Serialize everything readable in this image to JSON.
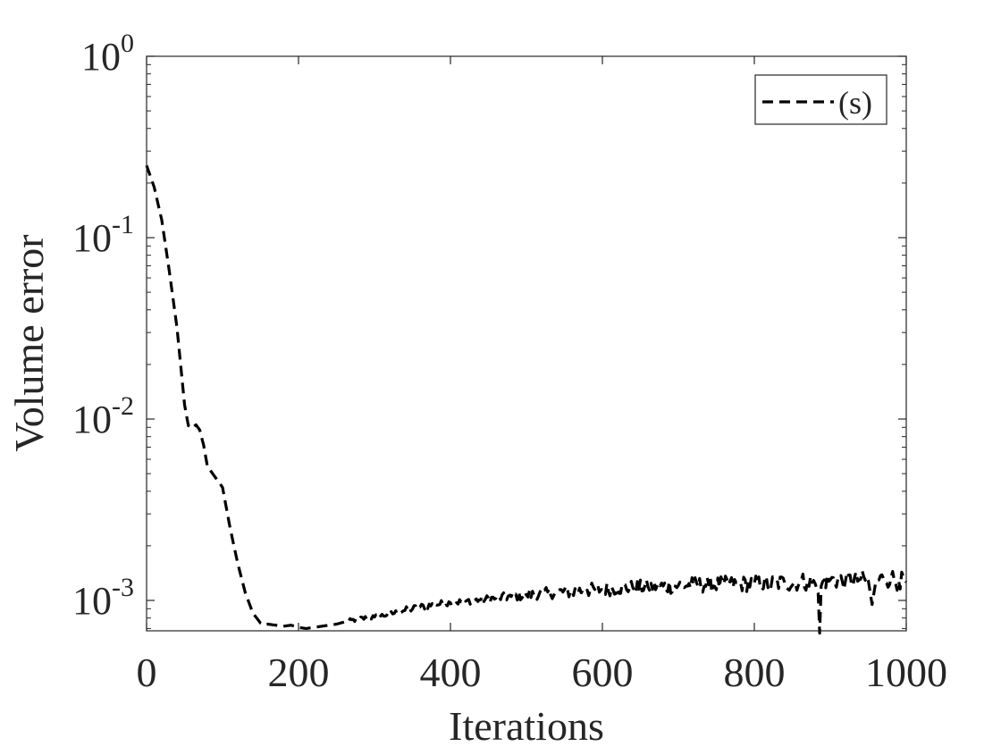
{
  "chart_data": {
    "type": "line",
    "title": "",
    "xlabel": "Iterations",
    "ylabel": "Volume error",
    "x_scale": "linear",
    "y_scale": "log",
    "xlim": [
      0,
      1000
    ],
    "ylim": [
      0.00068,
      1
    ],
    "x_ticks": [
      0,
      200,
      400,
      600,
      800,
      1000
    ],
    "x_tick_labels": [
      "0",
      "200",
      "400",
      "600",
      "800",
      "1000"
    ],
    "y_ticks": [
      0.001,
      0.01,
      0.1,
      1
    ],
    "y_tick_labels": [
      {
        "base": "10",
        "exp": "-3"
      },
      {
        "base": "10",
        "exp": "-2"
      },
      {
        "base": "10",
        "exp": "-1"
      },
      {
        "base": "10",
        "exp": "0"
      }
    ],
    "grid": false,
    "box": true,
    "legend": {
      "location": "top-right"
    },
    "series": [
      {
        "name": "(s)",
        "color": "#000000",
        "line_style": "dashed",
        "x": [
          0,
          10,
          20,
          30,
          40,
          50,
          55,
          60,
          65,
          70,
          75,
          80,
          90,
          100,
          110,
          120,
          130,
          140,
          150,
          155,
          160,
          170,
          180,
          190,
          200,
          210,
          220,
          230,
          240,
          250,
          260,
          280,
          300,
          320,
          340,
          360,
          380,
          400,
          420,
          440,
          460,
          480,
          500,
          520,
          540,
          560,
          580,
          600,
          620,
          640,
          660,
          680,
          700,
          720,
          740,
          760,
          780,
          800,
          820,
          840,
          860,
          870,
          880,
          884,
          886,
          888,
          890,
          900,
          920,
          940,
          950,
          955,
          960,
          970,
          980,
          990,
          1000
        ],
        "y": [
          0.25,
          0.19,
          0.125,
          0.065,
          0.032,
          0.012,
          0.0092,
          0.0089,
          0.0093,
          0.0087,
          0.0072,
          0.0055,
          0.0048,
          0.0042,
          0.0025,
          0.0016,
          0.0011,
          0.00085,
          0.00075,
          0.00073,
          0.00074,
          0.00073,
          0.00072,
          0.00073,
          0.00071,
          0.0007,
          0.00071,
          0.00072,
          0.00073,
          0.00074,
          0.00076,
          0.00079,
          0.00081,
          0.00084,
          0.00088,
          0.00092,
          0.00095,
          0.00097,
          0.00099,
          0.00101,
          0.00103,
          0.00105,
          0.00107,
          0.00109,
          0.00111,
          0.00112,
          0.00114,
          0.00115,
          0.00117,
          0.00118,
          0.00119,
          0.0012,
          0.00121,
          0.00122,
          0.00122,
          0.00123,
          0.00123,
          0.00124,
          0.00124,
          0.00125,
          0.00126,
          0.00128,
          0.00124,
          0.0011,
          0.00066,
          0.0012,
          0.00127,
          0.0013,
          0.00128,
          0.00131,
          0.00129,
          0.00095,
          0.00128,
          0.00132,
          0.00133,
          0.00128,
          0.00126
        ],
        "noise": [
          0,
          0,
          0,
          0,
          0,
          0,
          0,
          0,
          0,
          0,
          0,
          0,
          0,
          0,
          0,
          0,
          0,
          0,
          0,
          0,
          0,
          0,
          0,
          0,
          0,
          0,
          0,
          0,
          0,
          0,
          0.02,
          0.03,
          0.03,
          0.03,
          0.04,
          0.04,
          0.04,
          0.04,
          0.04,
          0.04,
          0.05,
          0.05,
          0.06,
          0.06,
          0.07,
          0.08,
          0.08,
          0.08,
          0.08,
          0.08,
          0.08,
          0.09,
          0.09,
          0.09,
          0.09,
          0.09,
          0.09,
          0.09,
          0.1,
          0.1,
          0.1,
          0.11,
          0.1,
          0,
          0,
          0,
          0.1,
          0.1,
          0.1,
          0.1,
          0.1,
          0,
          0.1,
          0.11,
          0.11,
          0.11,
          0.1
        ]
      }
    ]
  }
}
